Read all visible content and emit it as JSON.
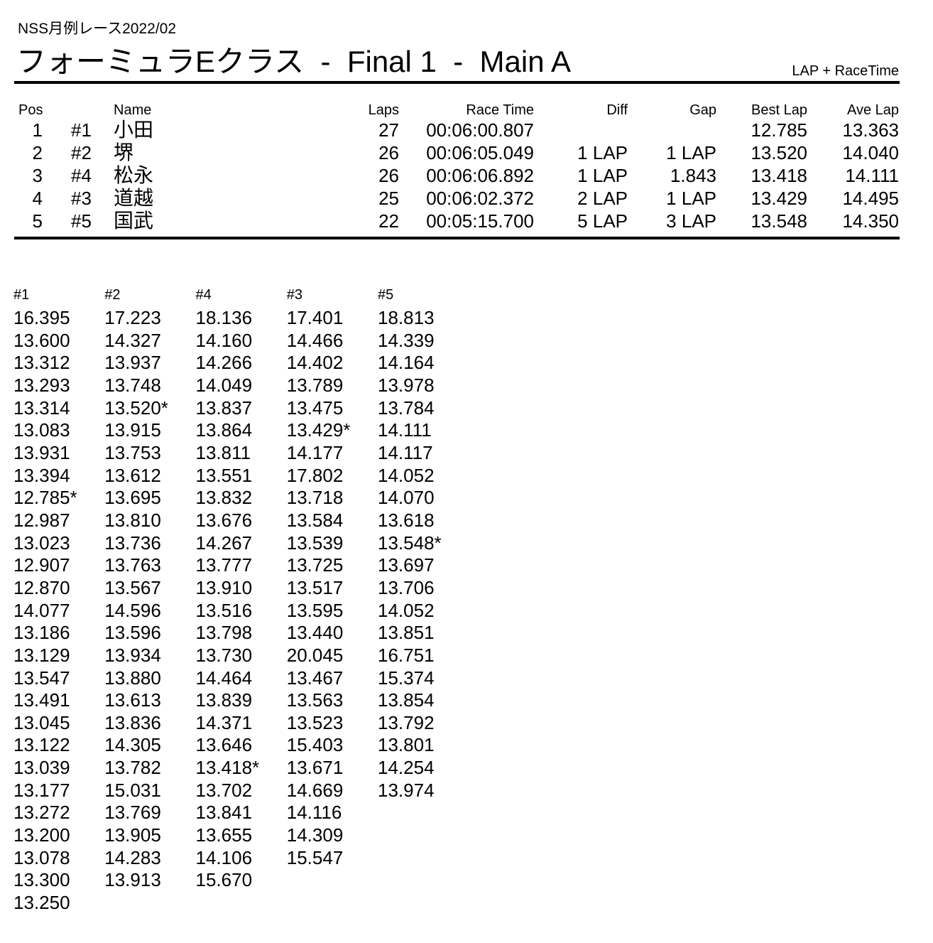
{
  "header": {
    "event": "NSS月例レース2022/02",
    "title": "フォーミュラEクラス  -  Final 1  -  Main A",
    "mode": "LAP + RaceTime"
  },
  "results": {
    "headers": {
      "pos": "Pos",
      "car": "",
      "name": "Name",
      "laps": "Laps",
      "race_time": "Race Time",
      "diff": "Diff",
      "gap": "Gap",
      "best_lap": "Best Lap",
      "ave_lap": "Ave Lap"
    },
    "rows": [
      {
        "pos": "1",
        "car": "#1",
        "name": "小田",
        "laps": "27",
        "race_time": "00:06:00.807",
        "diff": "",
        "gap": "",
        "best_lap": "12.785",
        "ave_lap": "13.363"
      },
      {
        "pos": "2",
        "car": "#2",
        "name": "堺",
        "laps": "26",
        "race_time": "00:06:05.049",
        "diff": "1 LAP",
        "gap": "1 LAP",
        "best_lap": "13.520",
        "ave_lap": "14.040"
      },
      {
        "pos": "3",
        "car": "#4",
        "name": "松永",
        "laps": "26",
        "race_time": "00:06:06.892",
        "diff": "1 LAP",
        "gap": "1.843",
        "best_lap": "13.418",
        "ave_lap": "14.111"
      },
      {
        "pos": "4",
        "car": "#3",
        "name": "道越",
        "laps": "25",
        "race_time": "00:06:02.372",
        "diff": "2 LAP",
        "gap": "1 LAP",
        "best_lap": "13.429",
        "ave_lap": "14.495"
      },
      {
        "pos": "5",
        "car": "#5",
        "name": "国武",
        "laps": "22",
        "race_time": "00:05:15.700",
        "diff": "5 LAP",
        "gap": "3 LAP",
        "best_lap": "13.548",
        "ave_lap": "14.350"
      }
    ]
  },
  "lap_chart": {
    "columns": [
      {
        "car": "#1",
        "laps": [
          "16.395",
          "13.600",
          "13.312",
          "13.293",
          "13.314",
          "13.083",
          "13.931",
          "13.394",
          "12.785*",
          "12.987",
          "13.023",
          "12.907",
          "12.870",
          "14.077",
          "13.186",
          "13.129",
          "13.547",
          "13.491",
          "13.045",
          "13.122",
          "13.039",
          "13.177",
          "13.272",
          "13.200",
          "13.078",
          "13.300",
          "13.250"
        ]
      },
      {
        "car": "#2",
        "laps": [
          "17.223",
          "14.327",
          "13.937",
          "13.748",
          "13.520*",
          "13.915",
          "13.753",
          "13.612",
          "13.695",
          "13.810",
          "13.736",
          "13.763",
          "13.567",
          "14.596",
          "13.596",
          "13.934",
          "13.880",
          "13.613",
          "13.836",
          "14.305",
          "13.782",
          "15.031",
          "13.769",
          "13.905",
          "14.283",
          "13.913"
        ]
      },
      {
        "car": "#4",
        "laps": [
          "18.136",
          "14.160",
          "14.266",
          "14.049",
          "13.837",
          "13.864",
          "13.811",
          "13.551",
          "13.832",
          "13.676",
          "14.267",
          "13.777",
          "13.910",
          "13.516",
          "13.798",
          "13.730",
          "14.464",
          "13.839",
          "14.371",
          "13.646",
          "13.418*",
          "13.702",
          "13.841",
          "13.655",
          "14.106",
          "15.670"
        ]
      },
      {
        "car": "#3",
        "laps": [
          "17.401",
          "14.466",
          "14.402",
          "13.789",
          "13.475",
          "13.429*",
          "14.177",
          "17.802",
          "13.718",
          "13.584",
          "13.539",
          "13.725",
          "13.517",
          "13.595",
          "13.440",
          "20.045",
          "13.467",
          "13.563",
          "13.523",
          "15.403",
          "13.671",
          "14.669",
          "14.116",
          "14.309",
          "15.547"
        ]
      },
      {
        "car": "#5",
        "laps": [
          "18.813",
          "14.339",
          "14.164",
          "13.978",
          "13.784",
          "14.111",
          "14.117",
          "14.052",
          "14.070",
          "13.618",
          "13.548*",
          "13.697",
          "13.706",
          "14.052",
          "13.851",
          "16.751",
          "15.374",
          "13.854",
          "13.792",
          "13.801",
          "14.254",
          "13.974"
        ]
      }
    ]
  }
}
